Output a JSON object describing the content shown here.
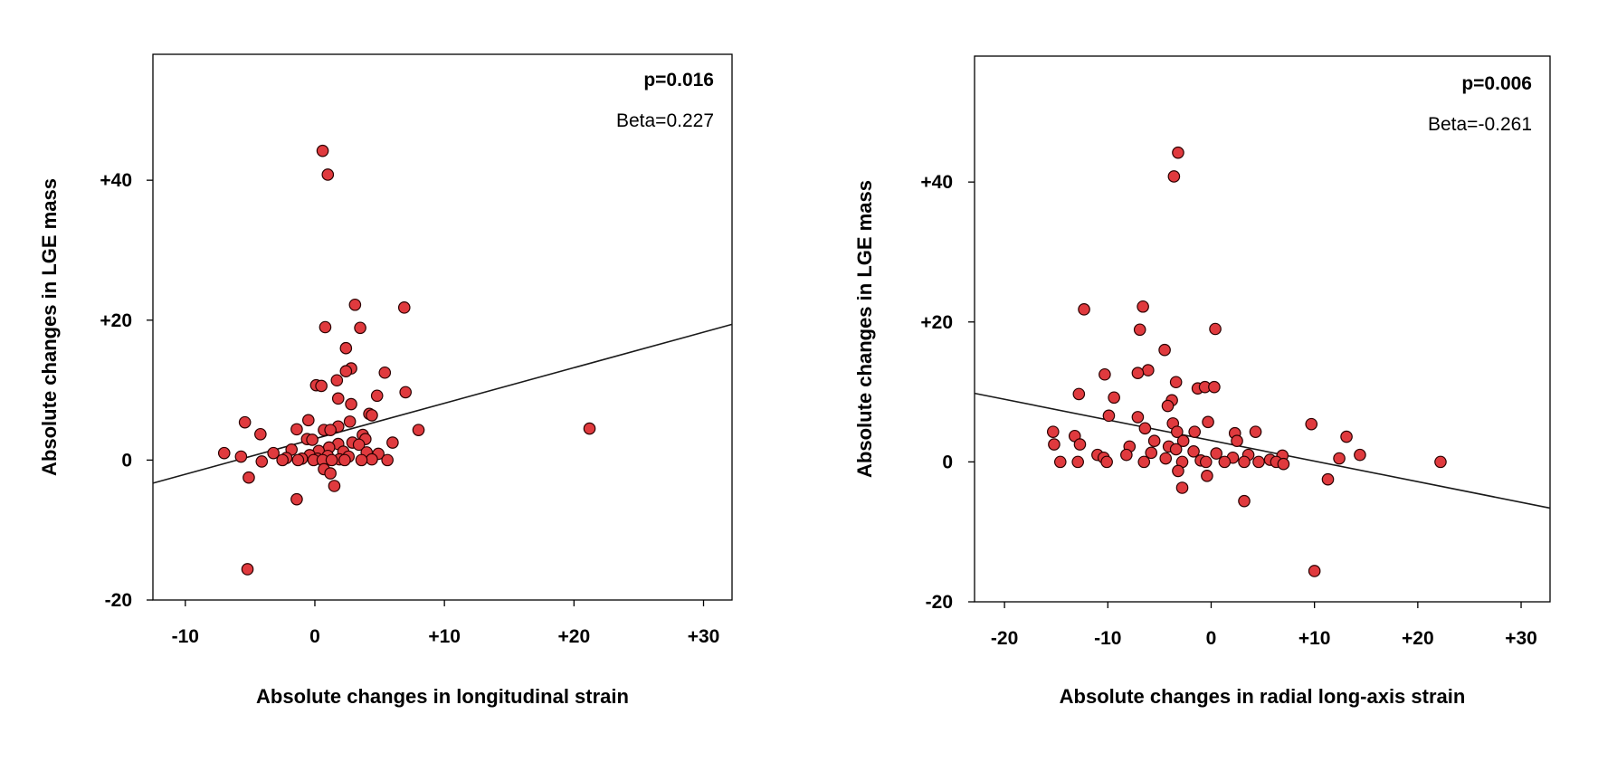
{
  "chart_data": [
    {
      "type": "scatter",
      "xlabel": "Absolute changes in longitudinal strain",
      "ylabel": "Absolute changes in LGE mass",
      "xlim": [
        -12.5,
        32.2
      ],
      "ylim": [
        -20,
        58
      ],
      "x_ticks": [
        -10,
        0,
        10,
        20,
        30
      ],
      "x_tick_labels": [
        "-10",
        "0",
        "+10",
        "+20",
        "+30"
      ],
      "y_ticks": [
        -20,
        0,
        20,
        40
      ],
      "y_tick_labels": [
        "-20",
        "0",
        "+20",
        "+40"
      ],
      "annotations": {
        "p": "p=0.016",
        "beta": "Beta=0.227"
      },
      "fit_line": {
        "x": [
          -12.5,
          32.2
        ],
        "y": [
          -3.3,
          19.4
        ]
      },
      "marker_color": "#e03a3e",
      "points": [
        {
          "x": 0.6,
          "y": 44.2
        },
        {
          "x": 1.0,
          "y": 40.8
        },
        {
          "x": 3.1,
          "y": 22.2
        },
        {
          "x": 6.9,
          "y": 21.8
        },
        {
          "x": 0.8,
          "y": 19.0
        },
        {
          "x": 3.5,
          "y": 18.9
        },
        {
          "x": 2.4,
          "y": 16.0
        },
        {
          "x": 2.8,
          "y": 13.1
        },
        {
          "x": 2.4,
          "y": 12.7
        },
        {
          "x": 5.4,
          "y": 12.5
        },
        {
          "x": 1.7,
          "y": 11.4
        },
        {
          "x": 0.1,
          "y": 10.7
        },
        {
          "x": 0.5,
          "y": 10.6
        },
        {
          "x": 7.0,
          "y": 9.7
        },
        {
          "x": 4.8,
          "y": 9.2
        },
        {
          "x": 1.8,
          "y": 8.8
        },
        {
          "x": 2.8,
          "y": 8.0
        },
        {
          "x": 4.2,
          "y": 6.6
        },
        {
          "x": 4.4,
          "y": 6.4
        },
        {
          "x": -0.5,
          "y": 5.7
        },
        {
          "x": 2.7,
          "y": 5.5
        },
        {
          "x": -5.4,
          "y": 5.4
        },
        {
          "x": 1.8,
          "y": 4.8
        },
        {
          "x": -1.4,
          "y": 4.4
        },
        {
          "x": 0.7,
          "y": 4.3
        },
        {
          "x": 1.2,
          "y": 4.3
        },
        {
          "x": 8.0,
          "y": 4.3
        },
        {
          "x": 21.2,
          "y": 4.5
        },
        {
          "x": -4.2,
          "y": 3.7
        },
        {
          "x": 3.7,
          "y": 3.6
        },
        {
          "x": 3.9,
          "y": 3.0
        },
        {
          "x": -0.6,
          "y": 3.0
        },
        {
          "x": -0.2,
          "y": 2.9
        },
        {
          "x": 2.9,
          "y": 2.5
        },
        {
          "x": 6.0,
          "y": 2.5
        },
        {
          "x": 1.8,
          "y": 2.3
        },
        {
          "x": 3.4,
          "y": 2.2
        },
        {
          "x": 1.1,
          "y": 1.8
        },
        {
          "x": -1.8,
          "y": 1.5
        },
        {
          "x": 0.3,
          "y": 1.3
        },
        {
          "x": 2.2,
          "y": 1.2
        },
        {
          "x": 4.0,
          "y": 1.1
        },
        {
          "x": -7.0,
          "y": 1.0
        },
        {
          "x": -3.2,
          "y": 1.0
        },
        {
          "x": 4.9,
          "y": 0.9
        },
        {
          "x": -0.4,
          "y": 0.7
        },
        {
          "x": 1.0,
          "y": 0.6
        },
        {
          "x": 2.6,
          "y": 0.5
        },
        {
          "x": -5.7,
          "y": 0.5
        },
        {
          "x": -2.2,
          "y": 0.3
        },
        {
          "x": -1.0,
          "y": 0.2
        },
        {
          "x": 0.2,
          "y": 0.2
        },
        {
          "x": 1.9,
          "y": 0.1
        },
        {
          "x": 4.4,
          "y": 0.1
        },
        {
          "x": -2.5,
          "y": 0.0
        },
        {
          "x": -1.3,
          "y": 0.0
        },
        {
          "x": -0.1,
          "y": 0.0
        },
        {
          "x": 0.6,
          "y": 0.0
        },
        {
          "x": 1.3,
          "y": 0.0
        },
        {
          "x": 2.3,
          "y": 0.0
        },
        {
          "x": 3.6,
          "y": 0.0
        },
        {
          "x": 5.6,
          "y": 0.0
        },
        {
          "x": -4.1,
          "y": -0.2
        },
        {
          "x": 0.7,
          "y": -1.3
        },
        {
          "x": 1.2,
          "y": -1.9
        },
        {
          "x": -5.1,
          "y": -2.5
        },
        {
          "x": 1.5,
          "y": -3.7
        },
        {
          "x": -1.4,
          "y": -5.6
        },
        {
          "x": -5.2,
          "y": -15.6
        }
      ]
    },
    {
      "type": "scatter",
      "xlabel": "Absolute changes in radial long-axis strain",
      "ylabel": "Absolute changes in LGE mass",
      "xlim": [
        -22.9,
        32.8
      ],
      "ylim": [
        -20,
        58
      ],
      "x_ticks": [
        -20,
        -10,
        0,
        10,
        20,
        30
      ],
      "x_tick_labels": [
        "-20",
        "-10",
        "0",
        "+10",
        "+20",
        "+30"
      ],
      "y_ticks": [
        -20,
        0,
        20,
        40
      ],
      "y_tick_labels": [
        "-20",
        "0",
        "+20",
        "+40"
      ],
      "annotations": {
        "p": "p=0.006",
        "beta": "Beta=-0.261"
      },
      "fit_line": {
        "x": [
          -22.9,
          32.8
        ],
        "y": [
          9.8,
          -6.6
        ]
      },
      "marker_color": "#e03a3e",
      "points": [
        {
          "x": -3.2,
          "y": 44.2
        },
        {
          "x": -3.6,
          "y": 40.8
        },
        {
          "x": -12.3,
          "y": 21.8
        },
        {
          "x": -6.6,
          "y": 22.2
        },
        {
          "x": -6.9,
          "y": 18.9
        },
        {
          "x": 0.4,
          "y": 19.0
        },
        {
          "x": -4.5,
          "y": 16.0
        },
        {
          "x": -6.1,
          "y": 13.1
        },
        {
          "x": -7.1,
          "y": 12.7
        },
        {
          "x": -10.3,
          "y": 12.5
        },
        {
          "x": -3.4,
          "y": 11.4
        },
        {
          "x": -1.3,
          "y": 10.5
        },
        {
          "x": -0.6,
          "y": 10.7
        },
        {
          "x": 0.3,
          "y": 10.7
        },
        {
          "x": -12.8,
          "y": 9.7
        },
        {
          "x": -9.4,
          "y": 9.2
        },
        {
          "x": -3.8,
          "y": 8.8
        },
        {
          "x": -4.2,
          "y": 8.0
        },
        {
          "x": -9.9,
          "y": 6.6
        },
        {
          "x": -7.1,
          "y": 6.4
        },
        {
          "x": -0.3,
          "y": 5.7
        },
        {
          "x": -3.7,
          "y": 5.5
        },
        {
          "x": 9.7,
          "y": 5.4
        },
        {
          "x": -6.4,
          "y": 4.8
        },
        {
          "x": -15.3,
          "y": 4.3
        },
        {
          "x": -3.3,
          "y": 4.3
        },
        {
          "x": -1.6,
          "y": 4.3
        },
        {
          "x": 2.3,
          "y": 4.1
        },
        {
          "x": 4.3,
          "y": 4.3
        },
        {
          "x": -13.2,
          "y": 3.7
        },
        {
          "x": 13.1,
          "y": 3.6
        },
        {
          "x": -2.7,
          "y": 3.0
        },
        {
          "x": -5.5,
          "y": 3.0
        },
        {
          "x": 2.5,
          "y": 3.0
        },
        {
          "x": -12.7,
          "y": 2.5
        },
        {
          "x": -15.2,
          "y": 2.5
        },
        {
          "x": -4.1,
          "y": 2.2
        },
        {
          "x": -7.9,
          "y": 2.2
        },
        {
          "x": -3.4,
          "y": 1.8
        },
        {
          "x": -1.7,
          "y": 1.5
        },
        {
          "x": -5.8,
          "y": 1.3
        },
        {
          "x": 0.5,
          "y": 1.2
        },
        {
          "x": 14.4,
          "y": 1.0
        },
        {
          "x": -11.0,
          "y": 1.0
        },
        {
          "x": -8.2,
          "y": 1.0
        },
        {
          "x": 3.6,
          "y": 1.0
        },
        {
          "x": 6.9,
          "y": 0.9
        },
        {
          "x": -10.4,
          "y": 0.6
        },
        {
          "x": 2.1,
          "y": 0.6
        },
        {
          "x": 12.4,
          "y": 0.5
        },
        {
          "x": -4.4,
          "y": 0.5
        },
        {
          "x": -1.0,
          "y": 0.2
        },
        {
          "x": 5.7,
          "y": 0.3
        },
        {
          "x": -14.6,
          "y": 0.0
        },
        {
          "x": -12.9,
          "y": 0.0
        },
        {
          "x": -10.1,
          "y": 0.0
        },
        {
          "x": -6.5,
          "y": 0.0
        },
        {
          "x": -2.8,
          "y": 0.0
        },
        {
          "x": -0.5,
          "y": 0.0
        },
        {
          "x": 1.3,
          "y": 0.0
        },
        {
          "x": 3.2,
          "y": 0.0
        },
        {
          "x": 4.6,
          "y": 0.0
        },
        {
          "x": 6.3,
          "y": 0.0
        },
        {
          "x": 22.2,
          "y": 0.0
        },
        {
          "x": 7.0,
          "y": -0.3
        },
        {
          "x": -0.4,
          "y": -2.0
        },
        {
          "x": -3.2,
          "y": -1.3
        },
        {
          "x": 11.3,
          "y": -2.5
        },
        {
          "x": -2.8,
          "y": -3.7
        },
        {
          "x": 3.2,
          "y": -5.6
        },
        {
          "x": 10.0,
          "y": -15.6
        }
      ]
    }
  ]
}
